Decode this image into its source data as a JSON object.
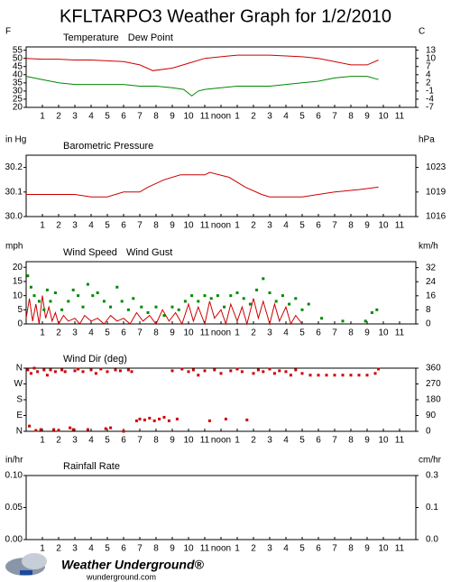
{
  "title": "KFLTARPO3 Weather Graph for 1/2/2010",
  "chart_data": [
    {
      "type": "line",
      "ylabel": "F",
      "y2label": "C",
      "xlim": [
        0,
        24
      ],
      "xticks": [
        1,
        2,
        3,
        4,
        5,
        6,
        7,
        8,
        9,
        10,
        11,
        {
          "value": 12,
          "label": "noon"
        },
        {
          "value": 13,
          "label": "1"
        },
        {
          "value": 14,
          "label": "2"
        },
        {
          "value": 15,
          "label": "3"
        },
        {
          "value": 16,
          "label": "4"
        },
        {
          "value": 17,
          "label": "5"
        },
        {
          "value": 18,
          "label": "6"
        },
        {
          "value": 19,
          "label": "7"
        },
        {
          "value": 20,
          "label": "8"
        },
        {
          "value": 21,
          "label": "9"
        },
        {
          "value": 22,
          "label": "10"
        },
        {
          "value": 23,
          "label": "11"
        }
      ],
      "ylim": [
        20,
        57
      ],
      "yticks": [
        55,
        50,
        45,
        40,
        35,
        30,
        25,
        20
      ],
      "y2lim": [
        -6.67,
        13.89
      ],
      "y2ticks": [
        {
          "value": 12.78,
          "label": "13"
        },
        {
          "value": 10,
          "label": "10"
        },
        {
          "value": 7.22,
          "label": "7"
        },
        {
          "value": 4.44,
          "label": "4"
        },
        {
          "value": 1.67,
          "label": "2"
        },
        {
          "value": -1.11,
          "label": "-1"
        },
        {
          "value": -3.89,
          "label": "-4"
        },
        {
          "value": -6.67,
          "label": "-7"
        }
      ],
      "series": [
        {
          "name": "Temperature",
          "color": "#cc0000",
          "style": "line",
          "x": [
            0,
            1,
            2,
            3,
            4,
            5,
            6,
            7,
            7.8,
            9,
            10,
            11,
            12,
            13,
            14,
            15,
            16,
            17,
            18,
            19,
            20,
            21,
            21.7
          ],
          "values": [
            50,
            49.5,
            49.5,
            49,
            49,
            48.5,
            48,
            46,
            42.5,
            44,
            47,
            50,
            51,
            52,
            52,
            52,
            51.5,
            51,
            50,
            48,
            46,
            46,
            49
          ]
        },
        {
          "name": "Dew Point",
          "color": "#008800",
          "style": "line",
          "x": [
            0,
            1,
            2,
            3,
            4,
            5,
            6,
            7,
            8,
            9,
            9.7,
            10.2,
            10.6,
            11,
            12,
            13,
            14,
            15,
            16,
            17,
            18,
            19,
            20,
            21,
            21.7
          ],
          "values": [
            39,
            37,
            35,
            34,
            34,
            34,
            34,
            33,
            33,
            32,
            31,
            27,
            30,
            31,
            32,
            33,
            33,
            33,
            34,
            35,
            36,
            38,
            39,
            39,
            37
          ]
        }
      ]
    },
    {
      "type": "line",
      "ylabel": "in Hg",
      "y2label": "hPa",
      "xlim": [
        0,
        24
      ],
      "xticks": [
        1,
        2,
        3,
        4,
        5,
        6,
        7,
        8,
        9,
        10,
        11,
        {
          "value": 12,
          "label": "noon"
        },
        {
          "value": 13,
          "label": "1"
        },
        {
          "value": 14,
          "label": "2"
        },
        {
          "value": 15,
          "label": "3"
        },
        {
          "value": 16,
          "label": "4"
        },
        {
          "value": 17,
          "label": "5"
        },
        {
          "value": 18,
          "label": "6"
        },
        {
          "value": 19,
          "label": "7"
        },
        {
          "value": 20,
          "label": "8"
        },
        {
          "value": 21,
          "label": "9"
        },
        {
          "value": 22,
          "label": "10"
        },
        {
          "value": 23,
          "label": "11"
        }
      ],
      "ylim": [
        30.0,
        30.25
      ],
      "yticks": [
        30.2,
        30.1,
        {
          "value": 30.0,
          "label": "30.0"
        }
      ],
      "y2lim": [
        1015.9,
        1024.4
      ],
      "y2ticks": [
        {
          "value": 1022.7,
          "label": "1023"
        },
        {
          "value": 1019.3,
          "label": "1019"
        },
        {
          "value": 1015.9,
          "label": "1016"
        }
      ],
      "series": [
        {
          "name": "Barometric Pressure",
          "color": "#cc0000",
          "style": "line",
          "x": [
            0,
            1,
            2,
            3,
            4,
            5,
            5.5,
            6,
            7,
            7.5,
            8.5,
            9.5,
            10,
            11,
            11.3,
            12.5,
            13.5,
            14.5,
            15,
            16,
            17,
            18,
            19,
            20.5,
            21.7
          ],
          "values": [
            30.09,
            30.09,
            30.09,
            30.09,
            30.08,
            30.08,
            30.09,
            30.1,
            30.1,
            30.12,
            30.15,
            30.17,
            30.17,
            30.17,
            30.18,
            30.16,
            30.12,
            30.09,
            30.08,
            30.08,
            30.08,
            30.09,
            30.1,
            30.11,
            30.12
          ]
        }
      ]
    },
    {
      "type": "line",
      "ylabel": "mph",
      "y2label": "km/h",
      "xlim": [
        0,
        24
      ],
      "xticks": [
        1,
        2,
        3,
        4,
        5,
        6,
        7,
        8,
        9,
        10,
        11,
        {
          "value": 12,
          "label": "noon"
        },
        {
          "value": 13,
          "label": "1"
        },
        {
          "value": 14,
          "label": "2"
        },
        {
          "value": 15,
          "label": "3"
        },
        {
          "value": 16,
          "label": "4"
        },
        {
          "value": 17,
          "label": "5"
        },
        {
          "value": 18,
          "label": "6"
        },
        {
          "value": 19,
          "label": "7"
        },
        {
          "value": 20,
          "label": "8"
        },
        {
          "value": 21,
          "label": "9"
        },
        {
          "value": 22,
          "label": "10"
        },
        {
          "value": 23,
          "label": "11"
        }
      ],
      "ylim": [
        0,
        22
      ],
      "yticks": [
        20,
        15,
        10,
        5,
        0
      ],
      "y2lim": [
        0,
        35.4
      ],
      "y2ticks": [
        32,
        24,
        16,
        8,
        0
      ],
      "series": [
        {
          "name": "Wind Speed",
          "color": "#cc0000",
          "style": "line",
          "x": [
            0,
            0.2,
            0.4,
            0.6,
            0.8,
            1,
            1.2,
            1.4,
            1.6,
            1.8,
            2,
            2.3,
            2.6,
            3,
            3.3,
            3.6,
            4,
            4.4,
            4.8,
            5.2,
            5.6,
            6,
            6.4,
            6.8,
            7.2,
            7.6,
            8,
            8.4,
            8.8,
            9.2,
            9.6,
            10,
            10.3,
            10.6,
            11,
            11.3,
            11.6,
            12,
            12.3,
            12.6,
            13,
            13.3,
            13.6,
            14,
            14.3,
            14.6,
            15,
            15.3,
            15.6,
            16,
            16.3,
            16.6,
            17
          ],
          "values": [
            2,
            9,
            1,
            7,
            0,
            10,
            2,
            6,
            1,
            4,
            0,
            3,
            1,
            2,
            0,
            3,
            1,
            2,
            0,
            3,
            1,
            2,
            0,
            4,
            1,
            3,
            0,
            5,
            1,
            4,
            0,
            7,
            1,
            6,
            0,
            8,
            2,
            5,
            0,
            7,
            1,
            6,
            0,
            9,
            2,
            8,
            0,
            7,
            1,
            6,
            0,
            3,
            0
          ]
        },
        {
          "name": "Wind Gust",
          "color": "#008800",
          "style": "points",
          "x": [
            0.1,
            0.3,
            0.5,
            0.8,
            1.1,
            1.3,
            1.5,
            1.8,
            2.2,
            2.6,
            2.9,
            3.2,
            3.5,
            3.8,
            4.1,
            4.4,
            4.8,
            5.2,
            5.6,
            5.9,
            6.3,
            6.6,
            7.1,
            7.5,
            8.0,
            8.5,
            9.0,
            9.4,
            9.8,
            10.2,
            10.6,
            11.0,
            11.4,
            11.8,
            12.2,
            12.6,
            13.0,
            13.4,
            13.8,
            14.2,
            14.6,
            15.0,
            15.4,
            15.8,
            16.2,
            16.6,
            17.0,
            17.4,
            18.2,
            19.5,
            20.9,
            21.3,
            21.6
          ],
          "values": [
            17,
            13,
            10,
            8,
            5,
            12,
            8,
            11,
            5,
            8,
            12,
            10,
            6,
            14,
            10,
            11,
            8,
            6,
            13,
            8,
            5,
            9,
            6,
            4,
            6,
            3,
            6,
            5,
            8,
            10,
            8,
            10,
            9,
            10,
            6,
            10,
            11,
            9,
            7,
            12,
            16,
            11,
            8,
            10,
            7,
            9,
            5,
            7,
            2,
            1,
            1,
            4,
            5
          ]
        }
      ]
    },
    {
      "type": "scatter",
      "xlim": [
        0,
        24
      ],
      "xticks": [
        1,
        2,
        3,
        4,
        5,
        6,
        7,
        8,
        9,
        10,
        11,
        {
          "value": 12,
          "label": "noon"
        },
        {
          "value": 13,
          "label": "1"
        },
        {
          "value": 14,
          "label": "2"
        },
        {
          "value": 15,
          "label": "3"
        },
        {
          "value": 16,
          "label": "4"
        },
        {
          "value": 17,
          "label": "5"
        },
        {
          "value": 18,
          "label": "6"
        },
        {
          "value": 19,
          "label": "7"
        },
        {
          "value": 20,
          "label": "8"
        },
        {
          "value": 21,
          "label": "9"
        },
        {
          "value": 22,
          "label": "10"
        },
        {
          "value": 23,
          "label": "11"
        }
      ],
      "ylim": [
        0,
        360
      ],
      "yticks": [
        {
          "value": 360,
          "label": "N"
        },
        {
          "value": 270,
          "label": "W"
        },
        {
          "value": 180,
          "label": "S"
        },
        {
          "value": 90,
          "label": "E"
        },
        {
          "value": 0,
          "label": "N"
        }
      ],
      "y2lim": [
        0,
        360
      ],
      "y2ticks": [
        360,
        270,
        180,
        90,
        0
      ],
      "series": [
        {
          "name": "Wind Dir (deg)",
          "color": "#cc0000",
          "style": "points",
          "x": [
            0.1,
            0.2,
            0.3,
            0.5,
            0.6,
            0.7,
            0.9,
            1.1,
            1.3,
            1.5,
            1.7,
            1.8,
            2.0,
            2.2,
            2.4,
            2.7,
            2.9,
            3.0,
            3.2,
            3.5,
            3.8,
            4.0,
            4.3,
            4.6,
            4.9,
            5.0,
            5.2,
            5.5,
            5.8,
            6.0,
            6.3,
            6.5,
            6.8,
            7.0,
            7.3,
            7.6,
            7.9,
            8.2,
            8.5,
            8.8,
            9.0,
            9.3,
            9.6,
            10.0,
            10.3,
            10.6,
            11.0,
            11.3,
            11.6,
            12.0,
            12.3,
            12.6,
            13.0,
            13.3,
            13.6,
            14.0,
            14.3,
            14.6,
            15.0,
            15.3,
            15.6,
            16.0,
            16.3,
            16.6,
            17.0,
            17.5,
            18.0,
            18.5,
            19.0,
            19.5,
            20.0,
            20.5,
            21.0,
            21.5,
            21.7
          ],
          "values": [
            350,
            30,
            330,
            360,
            5,
            340,
            10,
            350,
            320,
            350,
            10,
            340,
            5,
            350,
            340,
            20,
            10,
            345,
            355,
            340,
            10,
            350,
            330,
            355,
            15,
            340,
            20,
            350,
            345,
            0,
            350,
            340,
            60,
            70,
            65,
            75,
            60,
            70,
            80,
            60,
            345,
            70,
            355,
            340,
            350,
            320,
            345,
            60,
            350,
            330,
            70,
            345,
            355,
            340,
            65,
            330,
            350,
            340,
            355,
            330,
            345,
            340,
            320,
            350,
            330,
            320,
            320,
            320,
            320,
            320,
            320,
            320,
            320,
            330,
            355
          ]
        }
      ]
    },
    {
      "type": "line",
      "ylabel": "in/hr",
      "y2label": "cm/hr",
      "xlim": [
        0,
        24
      ],
      "xticks": [
        1,
        2,
        3,
        4,
        5,
        6,
        7,
        8,
        9,
        10,
        11,
        {
          "value": 12,
          "label": "noon"
        },
        {
          "value": 13,
          "label": "1"
        },
        {
          "value": 14,
          "label": "2"
        },
        {
          "value": 15,
          "label": "3"
        },
        {
          "value": 16,
          "label": "4"
        },
        {
          "value": 17,
          "label": "5"
        },
        {
          "value": 18,
          "label": "6"
        },
        {
          "value": 19,
          "label": "7"
        },
        {
          "value": 20,
          "label": "8"
        },
        {
          "value": 21,
          "label": "9"
        },
        {
          "value": 22,
          "label": "10"
        },
        {
          "value": 23,
          "label": "11"
        }
      ],
      "ylim": [
        0,
        0.1
      ],
      "yticks": [
        {
          "value": 0.1,
          "label": "0.10"
        },
        0.05,
        {
          "value": 0,
          "label": "0.00"
        }
      ],
      "y2lim": [
        0,
        0.254
      ],
      "y2ticks": [
        {
          "value": 0.254,
          "label": "0.3"
        },
        {
          "value": 0.127,
          "label": "0.1"
        },
        {
          "value": 0,
          "label": "0.0"
        }
      ],
      "series": [
        {
          "name": "Rainfall Rate",
          "color": "#cc0000",
          "style": "line",
          "x": [],
          "values": []
        }
      ]
    }
  ],
  "footer": {
    "brand": "Weather Underground®",
    "url": "wunderground.com"
  }
}
